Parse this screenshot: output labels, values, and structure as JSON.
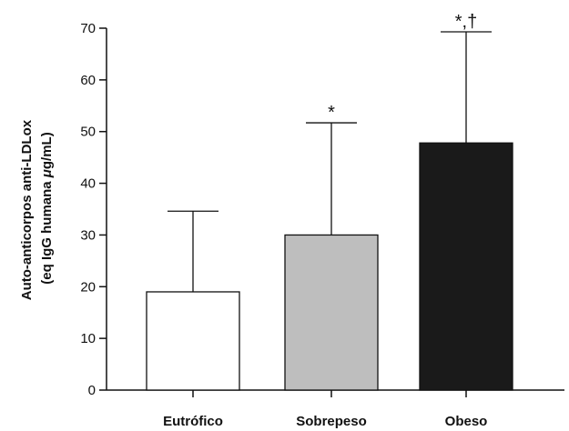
{
  "chart_data": {
    "type": "bar",
    "categories": [
      "Eutrófico",
      "Sobrepeso",
      "Obeso"
    ],
    "values": [
      19,
      30,
      47.8
    ],
    "error_upper": [
      34.6,
      51.7,
      69.3
    ],
    "annotations": [
      "",
      "*",
      "*,†"
    ],
    "colors": [
      "#ffffff",
      "#bebebe",
      "#1a1a1a"
    ],
    "ylabel_line1": "Auto-anticorpos anti-LDLox",
    "ylabel_line2_prefix": "(eq IgG humana ",
    "ylabel_line2_mu": "μ",
    "ylabel_line2_suffix": "g/mL)",
    "ylim": [
      0,
      70
    ],
    "yticks": [
      0,
      10,
      20,
      30,
      40,
      50,
      60,
      70
    ],
    "grid": false
  }
}
